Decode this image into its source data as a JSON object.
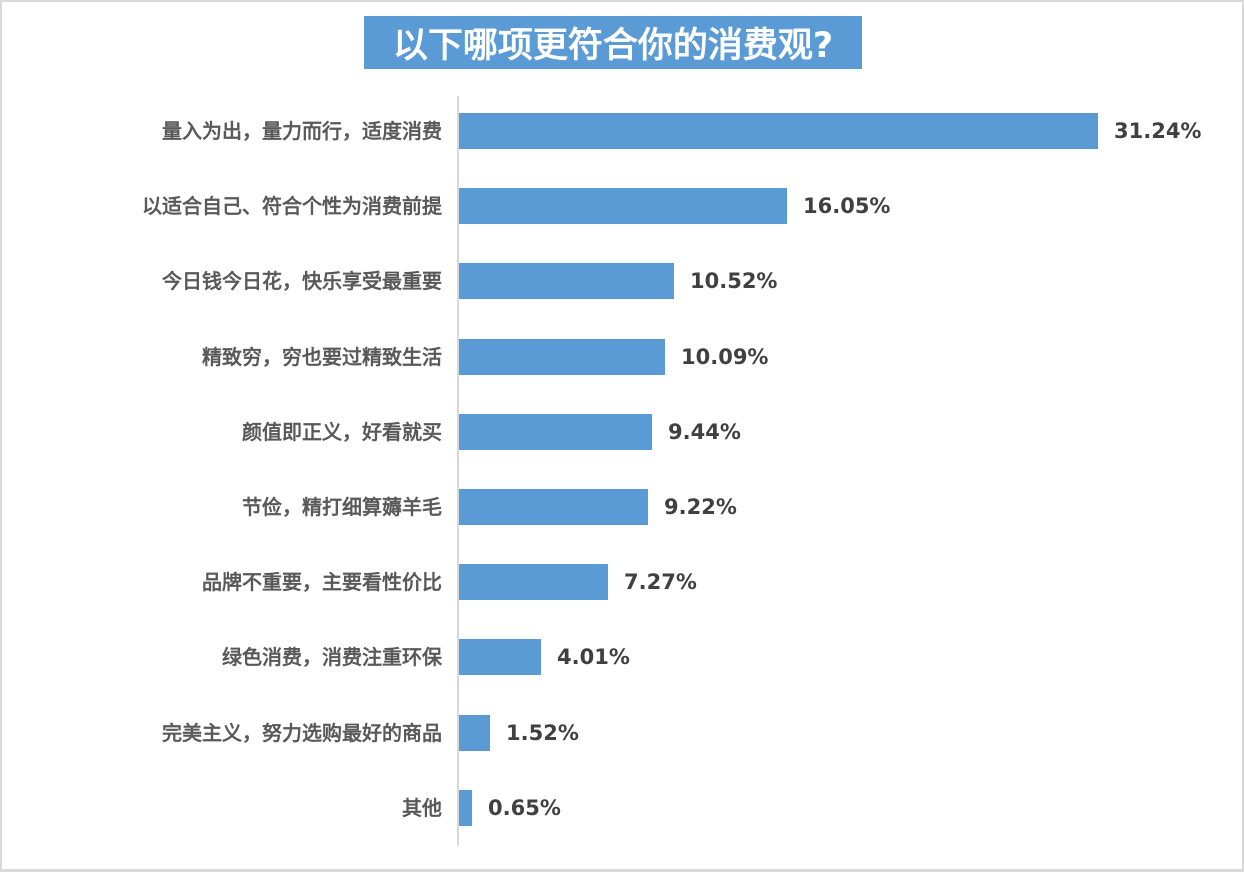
{
  "chart_data": {
    "type": "bar",
    "orientation": "horizontal",
    "title": "以下哪项更符合你的消费观?",
    "categories": [
      "量入为出，量力而行，适度消费",
      "以适合自己、符合个性为消费前提",
      "今日钱今日花，快乐享受最重要",
      "精致穷，穷也要过精致生活",
      "颜值即正义，好看就买",
      "节俭，精打细算薅羊毛",
      "品牌不重要，主要看性价比",
      "绿色消费，消费注重环保",
      "完美主义，努力选购最好的商品",
      "其他"
    ],
    "values": [
      31.24,
      16.05,
      10.52,
      10.09,
      9.44,
      9.22,
      7.27,
      4.01,
      1.52,
      0.65
    ],
    "value_labels": [
      "31.24%",
      "16.05%",
      "10.52%",
      "10.09%",
      "9.44%",
      "9.22%",
      "7.27%",
      "4.01%",
      "1.52%",
      "0.65%"
    ],
    "unit": "%",
    "xlabel": "",
    "ylabel": "",
    "grid": false,
    "legend": null,
    "bar_color": "#5b9bd5",
    "title_background": "#5b9bd5"
  },
  "header": {
    "title": "以下哪项更符合你的消费观?"
  },
  "rows": [
    {
      "label": "量入为出，量力而行，适度消费",
      "value_text": "31.24%"
    },
    {
      "label": "以适合自己、符合个性为消费前提",
      "value_text": "16.05%"
    },
    {
      "label": "今日钱今日花，快乐享受最重要",
      "value_text": "10.52%"
    },
    {
      "label": "精致穷，穷也要过精致生活",
      "value_text": "10.09%"
    },
    {
      "label": "颜值即正义，好看就买",
      "value_text": "9.44%"
    },
    {
      "label": "节俭，精打细算薅羊毛",
      "value_text": "9.22%"
    },
    {
      "label": "品牌不重要，主要看性价比",
      "value_text": "7.27%"
    },
    {
      "label": "绿色消费，消费注重环保",
      "value_text": "4.01%"
    },
    {
      "label": "完美主义，努力选购最好的商品",
      "value_text": "1.52%"
    },
    {
      "label": "其他",
      "value_text": "0.65%"
    }
  ]
}
